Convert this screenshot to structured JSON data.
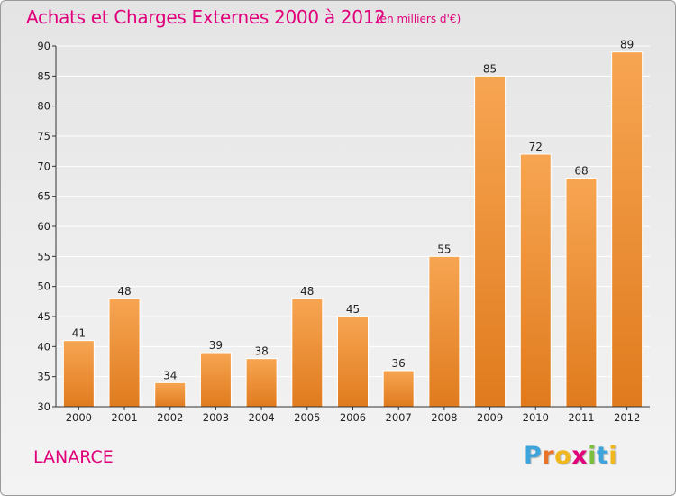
{
  "header": {
    "title": "Achats et Charges Externes 2000 à 2012",
    "unit": "(en milliers d'€)"
  },
  "footer": {
    "location": "LANARCE",
    "logo_letters": [
      "P",
      "r",
      "o",
      "x",
      "i",
      "t",
      "i"
    ],
    "logo_colors": [
      "#3da4dc",
      "#e8722a",
      "#f0b81e",
      "#e0007a",
      "#7bbf3c",
      "#3da4dc",
      "#f0b81e"
    ]
  },
  "chart_data": {
    "type": "bar",
    "title": "Achats et Charges Externes 2000 à 2012",
    "subtitle": "(en milliers d'€)",
    "categories": [
      "2000",
      "2001",
      "2002",
      "2003",
      "2004",
      "2005",
      "2006",
      "2007",
      "2008",
      "2009",
      "2010",
      "2011",
      "2012"
    ],
    "values": [
      41,
      48,
      34,
      39,
      38,
      48,
      45,
      36,
      55,
      85,
      72,
      68,
      89
    ],
    "value_labels": [
      "41",
      "48",
      "34",
      "39",
      "38",
      "48",
      "45",
      "36",
      "55",
      "85",
      "72",
      "68",
      "89"
    ],
    "yticks": [
      "30",
      "35",
      "40",
      "45",
      "50",
      "55",
      "60",
      "65",
      "70",
      "75",
      "80",
      "85",
      "90"
    ],
    "ylim": [
      30,
      90
    ],
    "grid": true,
    "colors": {
      "bar_top": "#f7a552",
      "bar_bottom": "#e07b1e",
      "grid": "#ffffff",
      "axis": "#333333"
    }
  }
}
